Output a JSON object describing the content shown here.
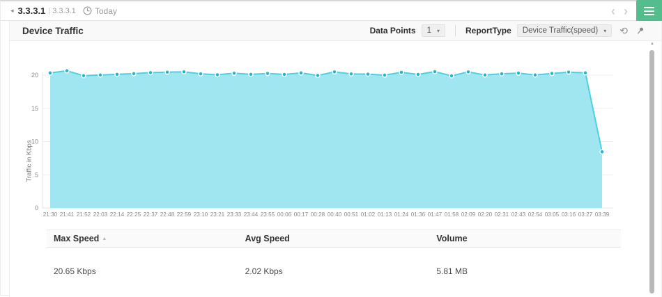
{
  "breadcrumb": {
    "device": "3.3.3.1",
    "sub_device": "3.3.3.1",
    "period": "Today"
  },
  "toolbar": {
    "title": "Device Traffic",
    "data_points_label": "Data Points",
    "data_points_value": "1",
    "report_type_label": "ReportType",
    "report_type_value": "Device Traffic(speed)"
  },
  "icons": {
    "back": "back-chevron-icon",
    "clock": "clock-icon",
    "prev": "chevron-left-icon",
    "next": "chevron-right-icon",
    "menu": "hamburger-menu-icon",
    "refresh": "refresh-icon",
    "pin": "pin-icon",
    "refresh_glyph": "⟲",
    "prev_glyph": "‹",
    "next_glyph": "›",
    "caret_glyph": "▾",
    "sort_asc_glyph": "▲",
    "scroll_up_glyph": "▲",
    "back_glyph": "◂"
  },
  "colors": {
    "accent_green": "#53be8c",
    "panel_header_bg": "#f9f9f9",
    "chart_fill": "#9ae5f0",
    "chart_line": "#4dd0e3",
    "chart_marker": "#1cb8d4",
    "grid": "#efefef"
  },
  "chart_data": {
    "type": "area",
    "title": "Device Traffic",
    "ylabel": "Traffic in Kbps",
    "xlabel": "",
    "ylim": [
      0,
      21
    ],
    "yticks": [
      0,
      5,
      10,
      15,
      20
    ],
    "grid": true,
    "legend": "none",
    "x": [
      "21:30",
      "21:41",
      "21:52",
      "22:03",
      "22:14",
      "22:25",
      "22:37",
      "22:48",
      "22:59",
      "23:10",
      "23:21",
      "23:33",
      "23:44",
      "23:55",
      "00:06",
      "00:17",
      "00:28",
      "00:40",
      "00:51",
      "01:02",
      "01:13",
      "01:24",
      "01:36",
      "01:47",
      "01:58",
      "02:09",
      "02:20",
      "02:31",
      "02:43",
      "02:54",
      "03:05",
      "03:16",
      "03:27",
      "03:39"
    ],
    "series": [
      {
        "name": "Traffic",
        "values": [
          20.32,
          20.65,
          19.92,
          20.02,
          20.12,
          20.22,
          20.38,
          20.44,
          20.5,
          20.2,
          20.05,
          20.28,
          20.12,
          20.25,
          20.1,
          20.32,
          19.95,
          20.48,
          20.18,
          20.15,
          20.0,
          20.42,
          20.1,
          20.52,
          19.9,
          20.48,
          20.02,
          20.2,
          20.3,
          20.02,
          20.25,
          20.45,
          20.35,
          8.45
        ]
      }
    ],
    "line_color": "#4dd0e3",
    "fill_color": "#9ae5f0",
    "marker_color": "#1cb8d4"
  },
  "table": {
    "columns": [
      "Max Speed",
      "Avg Speed",
      "Volume"
    ],
    "rows": [
      [
        "20.65 Kbps",
        "2.02 Kbps",
        "5.81 MB"
      ]
    ]
  }
}
